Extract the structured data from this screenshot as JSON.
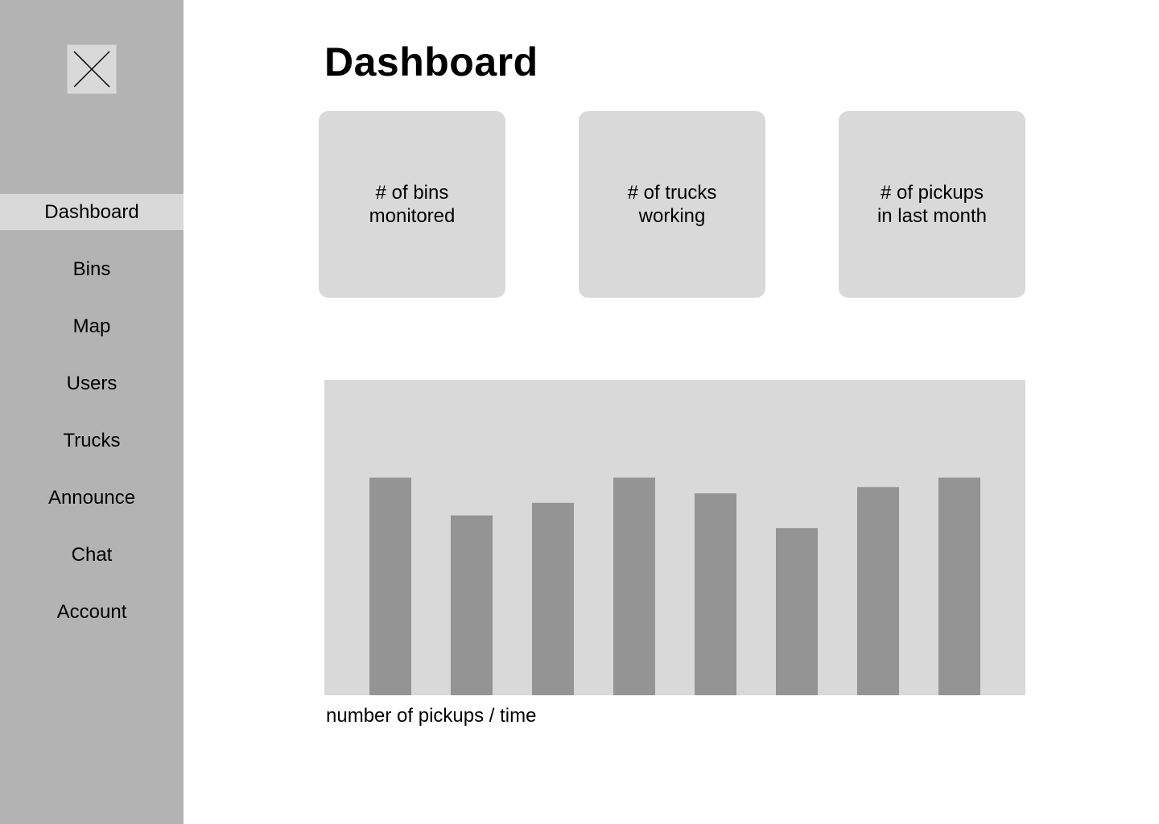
{
  "sidebar": {
    "logo_icon": "close-icon",
    "items": [
      {
        "label": "Dashboard",
        "active": true
      },
      {
        "label": "Bins",
        "active": false
      },
      {
        "label": "Map",
        "active": false
      },
      {
        "label": "Users",
        "active": false
      },
      {
        "label": "Trucks",
        "active": false
      },
      {
        "label": "Announce",
        "active": false
      },
      {
        "label": "Chat",
        "active": false
      },
      {
        "label": "Account",
        "active": false
      }
    ]
  },
  "main": {
    "title": "Dashboard",
    "cards": [
      {
        "label": "# of bins\nmonitored"
      },
      {
        "label": "# of trucks\nworking"
      },
      {
        "label": "# of pickups\nin last month"
      }
    ],
    "chart_caption": "number of pickups / time"
  },
  "chart_data": {
    "type": "bar",
    "categories": [
      "",
      "",
      "",
      "",
      "",
      "",
      "",
      ""
    ],
    "values": [
      69,
      57,
      61,
      69,
      64,
      53,
      66,
      69
    ],
    "ylim": [
      0,
      100
    ],
    "grid": false,
    "title": "",
    "xlabel": "number of pickups / time",
    "ylabel": "",
    "bar_color": "#949494",
    "background_color": "#d9d9d9"
  },
  "colors": {
    "sidebar_bg": "#b3b3b3",
    "active_bg": "#d9d9d9",
    "card_bg": "#d9d9d9"
  }
}
